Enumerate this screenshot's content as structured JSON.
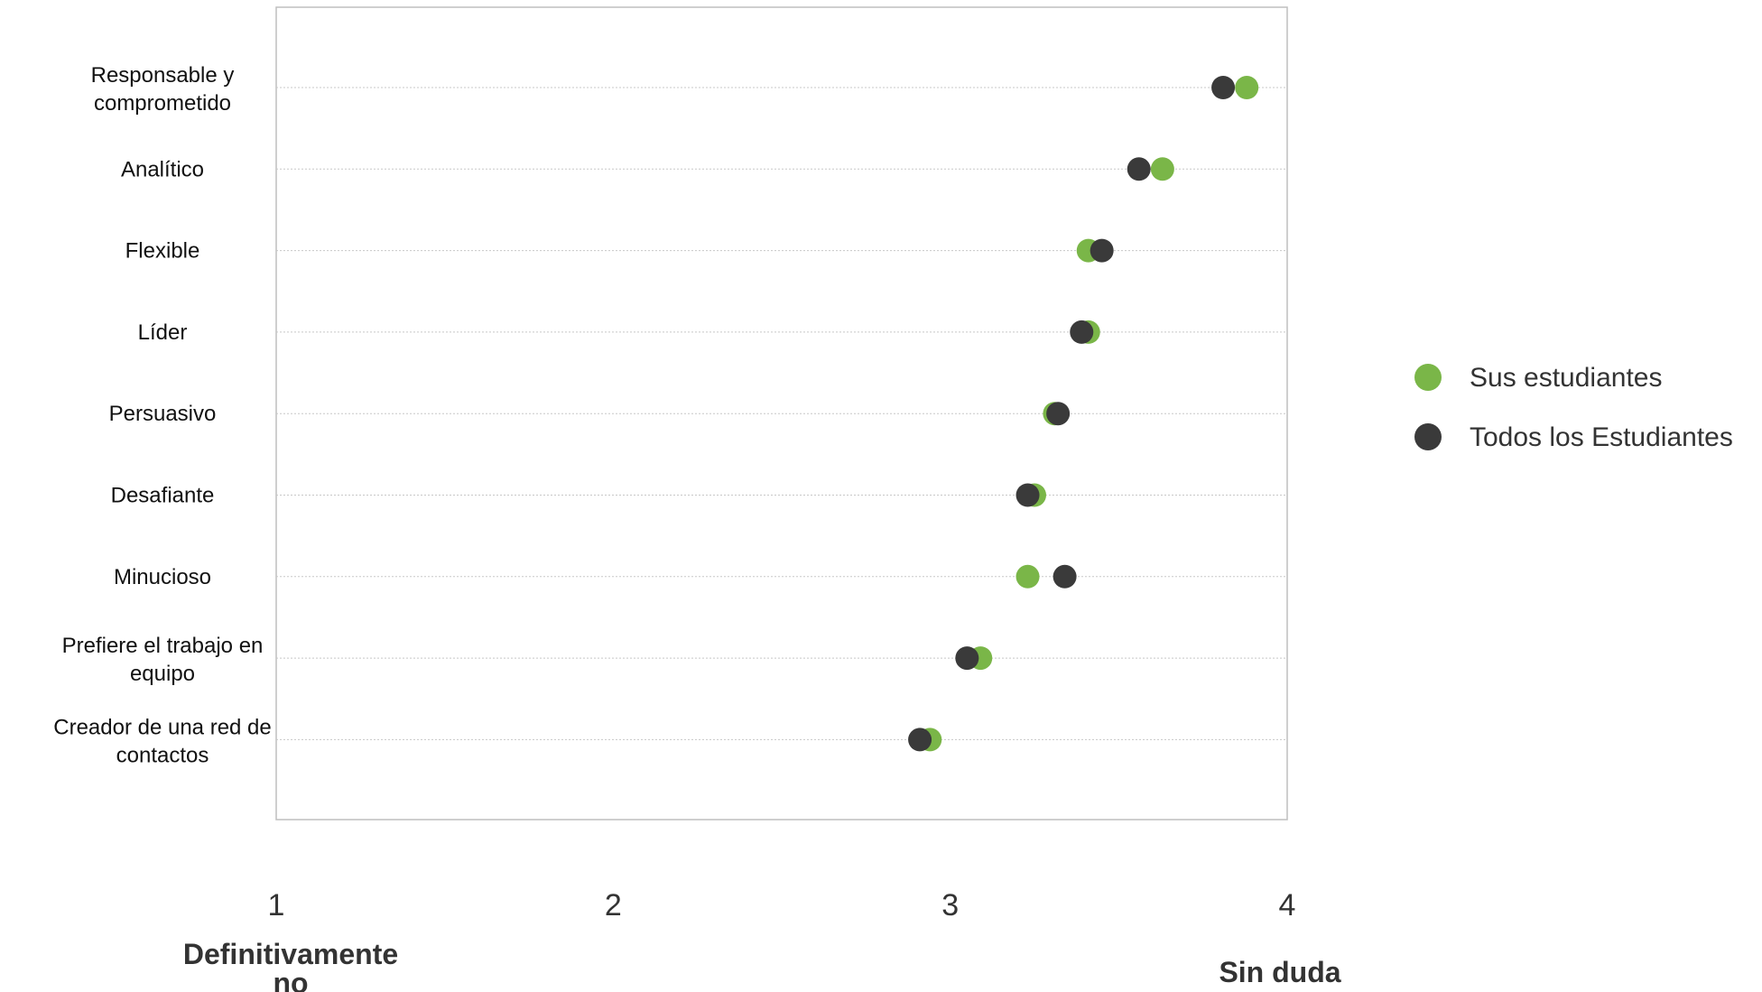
{
  "chart_data": {
    "type": "scatter",
    "orientation": "horizontal-dot-plot",
    "title": "",
    "xlabel": "",
    "ylabel": "",
    "xlim": [
      1,
      4
    ],
    "x_ticks": [
      1,
      2,
      3,
      4
    ],
    "x_tick_labels": [
      "1",
      "2",
      "3",
      "4"
    ],
    "x_anchor_labels": {
      "low": [
        "Definitivamente",
        "no"
      ],
      "high": [
        "Sin duda"
      ]
    },
    "grid": "dotted horizontal per category",
    "legend_position": "right",
    "categories": [
      [
        "Responsable y",
        "comprometido"
      ],
      [
        "Analítico"
      ],
      [
        "Flexible"
      ],
      [
        "Líder"
      ],
      [
        "Persuasivo"
      ],
      [
        "Desafiante"
      ],
      [
        "Minucioso"
      ],
      [
        "Prefiere el trabajo en",
        "equipo"
      ],
      [
        "Creador de una red de",
        "contactos"
      ]
    ],
    "series": [
      {
        "name": "Sus estudiantes",
        "color": "#7ab648",
        "values": [
          3.88,
          3.63,
          3.41,
          3.41,
          3.31,
          3.25,
          3.23,
          3.09,
          2.94
        ]
      },
      {
        "name": "Todos los Estudiantes",
        "color": "#3a3a3a",
        "values": [
          3.81,
          3.56,
          3.45,
          3.39,
          3.32,
          3.23,
          3.34,
          3.05,
          2.91
        ]
      }
    ]
  }
}
